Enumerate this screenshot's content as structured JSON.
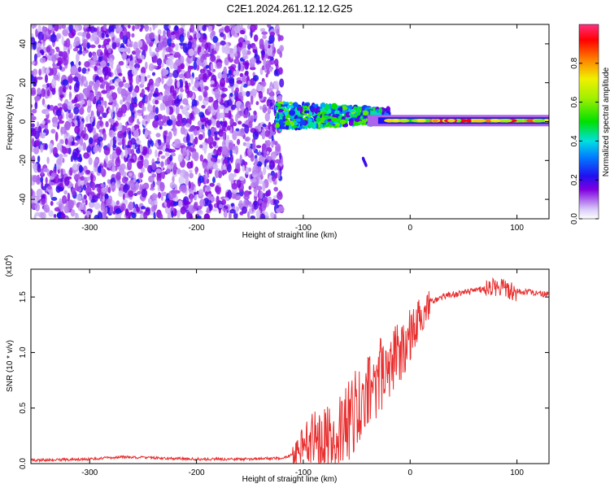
{
  "title": "C2E1.2024.261.12.12.G25",
  "chart_data": [
    {
      "type": "heatmap",
      "xlabel": "Height of straight line (km)",
      "ylabel": "Frequency (Hz)",
      "xlim": [
        -355,
        130
      ],
      "ylim": [
        -50,
        50
      ],
      "xticks": [
        -300,
        -200,
        -100,
        0,
        100
      ],
      "yticks": [
        -40,
        -20,
        0,
        20,
        40
      ],
      "colorbar": {
        "label": "Normalized spectral amplitude",
        "range": [
          0,
          1
        ],
        "ticks": [
          0.0,
          0.2,
          0.4,
          0.6,
          0.8
        ],
        "tick_labels": [
          "0.0",
          "0.2",
          "0.4",
          "0.6",
          "0.8"
        ]
      },
      "regions": [
        {
          "description": "broadband noise",
          "x_range": [
            -355,
            -120
          ],
          "y_range": [
            -50,
            50
          ],
          "amplitude": 0.12
        },
        {
          "description": "signal near 0 Hz",
          "x_range": [
            -125,
            -20
          ],
          "y_center": 3,
          "y_halfwidth": 7,
          "amplitude": 0.6
        },
        {
          "description": "stable carrier",
          "x_range": [
            -20,
            130
          ],
          "y_center": 0.5,
          "y_halfwidth": 2,
          "amplitude": 0.95
        }
      ],
      "colors": {
        "low": "#e0d0f8",
        "mid": "#7000e0",
        "peak": "#ff1060"
      }
    },
    {
      "type": "line",
      "xlabel": "Height of straight line (km)",
      "ylabel": "SNR (10 * v/v)",
      "exponent_label": "(x10",
      "exponent_power": "4",
      "exponent_close": ")",
      "xlim": [
        -355,
        130
      ],
      "ylim": [
        0,
        1.75
      ],
      "xticks": [
        -300,
        -200,
        -100,
        0,
        100
      ],
      "yticks": [
        0.0,
        0.5,
        1.0,
        1.5
      ],
      "ytick_labels": [
        "0.0",
        "0.5",
        "1.0",
        "1.5"
      ],
      "series_color": "#e83030",
      "x": [
        -355,
        -300,
        -270,
        -200,
        -150,
        -120,
        -110,
        -100,
        -90,
        -80,
        -70,
        -60,
        -50,
        -40,
        -30,
        -20,
        -10,
        0,
        10,
        20,
        30,
        40,
        60,
        80,
        100,
        130
      ],
      "values": [
        0.03,
        0.04,
        0.06,
        0.04,
        0.04,
        0.05,
        0.08,
        0.15,
        0.25,
        0.22,
        0.3,
        0.35,
        0.5,
        0.6,
        0.75,
        0.9,
        1.0,
        1.15,
        1.35,
        1.45,
        1.5,
        1.52,
        1.55,
        1.6,
        1.55,
        1.52
      ]
    }
  ]
}
